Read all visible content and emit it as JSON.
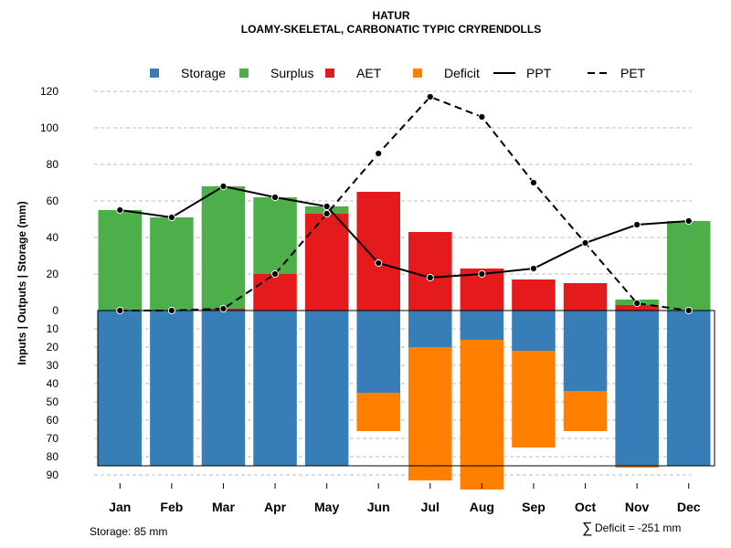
{
  "chart_data": {
    "type": "bar",
    "title": "HATUR",
    "subtitle": "LOAMY-SKELETAL, CARBONATIC TYPIC CRYRENDOLLS",
    "ylabel": "Inputs | Outputs | Storage    (mm)",
    "categories": [
      "Jan",
      "Feb",
      "Mar",
      "Apr",
      "May",
      "Jun",
      "Jul",
      "Aug",
      "Sep",
      "Oct",
      "Nov",
      "Dec"
    ],
    "ylim_top": [
      0,
      120
    ],
    "ylim_bottom": [
      0,
      90
    ],
    "yticks_top": [
      "120",
      "100",
      "80",
      "60",
      "40",
      "20",
      "0"
    ],
    "yticks_bottom": [
      "10",
      "20",
      "30",
      "40",
      "50",
      "60",
      "70",
      "80",
      "90"
    ],
    "legend": [
      {
        "label": "Storage",
        "kind": "box",
        "color": "#377EB8"
      },
      {
        "label": "Surplus",
        "kind": "box",
        "color": "#4DAF4A"
      },
      {
        "label": "AET",
        "kind": "box",
        "color": "#E41A1C"
      },
      {
        "label": "Deficit",
        "kind": "box",
        "color": "#FF7F00"
      },
      {
        "label": "PPT",
        "kind": "solid",
        "color": "#000000"
      },
      {
        "label": "PET",
        "kind": "dashed",
        "color": "#000000"
      }
    ],
    "colors": {
      "storage": "#377EB8",
      "surplus": "#4DAF4A",
      "aet": "#E41A1C",
      "deficit": "#FF7F00",
      "line": "#000000"
    },
    "series": [
      {
        "name": "AET",
        "values": [
          0,
          0,
          1,
          20,
          53,
          65,
          43,
          23,
          17,
          15,
          3,
          0
        ]
      },
      {
        "name": "Surplus",
        "values": [
          55,
          51,
          67,
          42,
          4,
          0,
          0,
          0,
          0,
          0,
          3,
          49
        ]
      },
      {
        "name": "PPT",
        "values": [
          55,
          51,
          68,
          62,
          57,
          26,
          18,
          20,
          23,
          37,
          47,
          49
        ]
      },
      {
        "name": "PET",
        "values": [
          0,
          0,
          1,
          20,
          53,
          86,
          117,
          106,
          70,
          37,
          4,
          0
        ]
      },
      {
        "name": "Storage",
        "values": [
          85,
          85,
          85,
          85,
          85,
          45,
          20,
          16,
          22,
          44,
          85,
          85
        ]
      },
      {
        "name": "Deficit",
        "values": [
          0,
          0,
          0,
          0,
          0,
          21,
          73,
          82,
          53,
          22,
          1,
          0
        ]
      }
    ],
    "storage_capacity": 85,
    "storage_note": "Storage: 85 mm",
    "deficit_symbol": "∑",
    "deficit_note": "Deficit = -251 mm"
  }
}
